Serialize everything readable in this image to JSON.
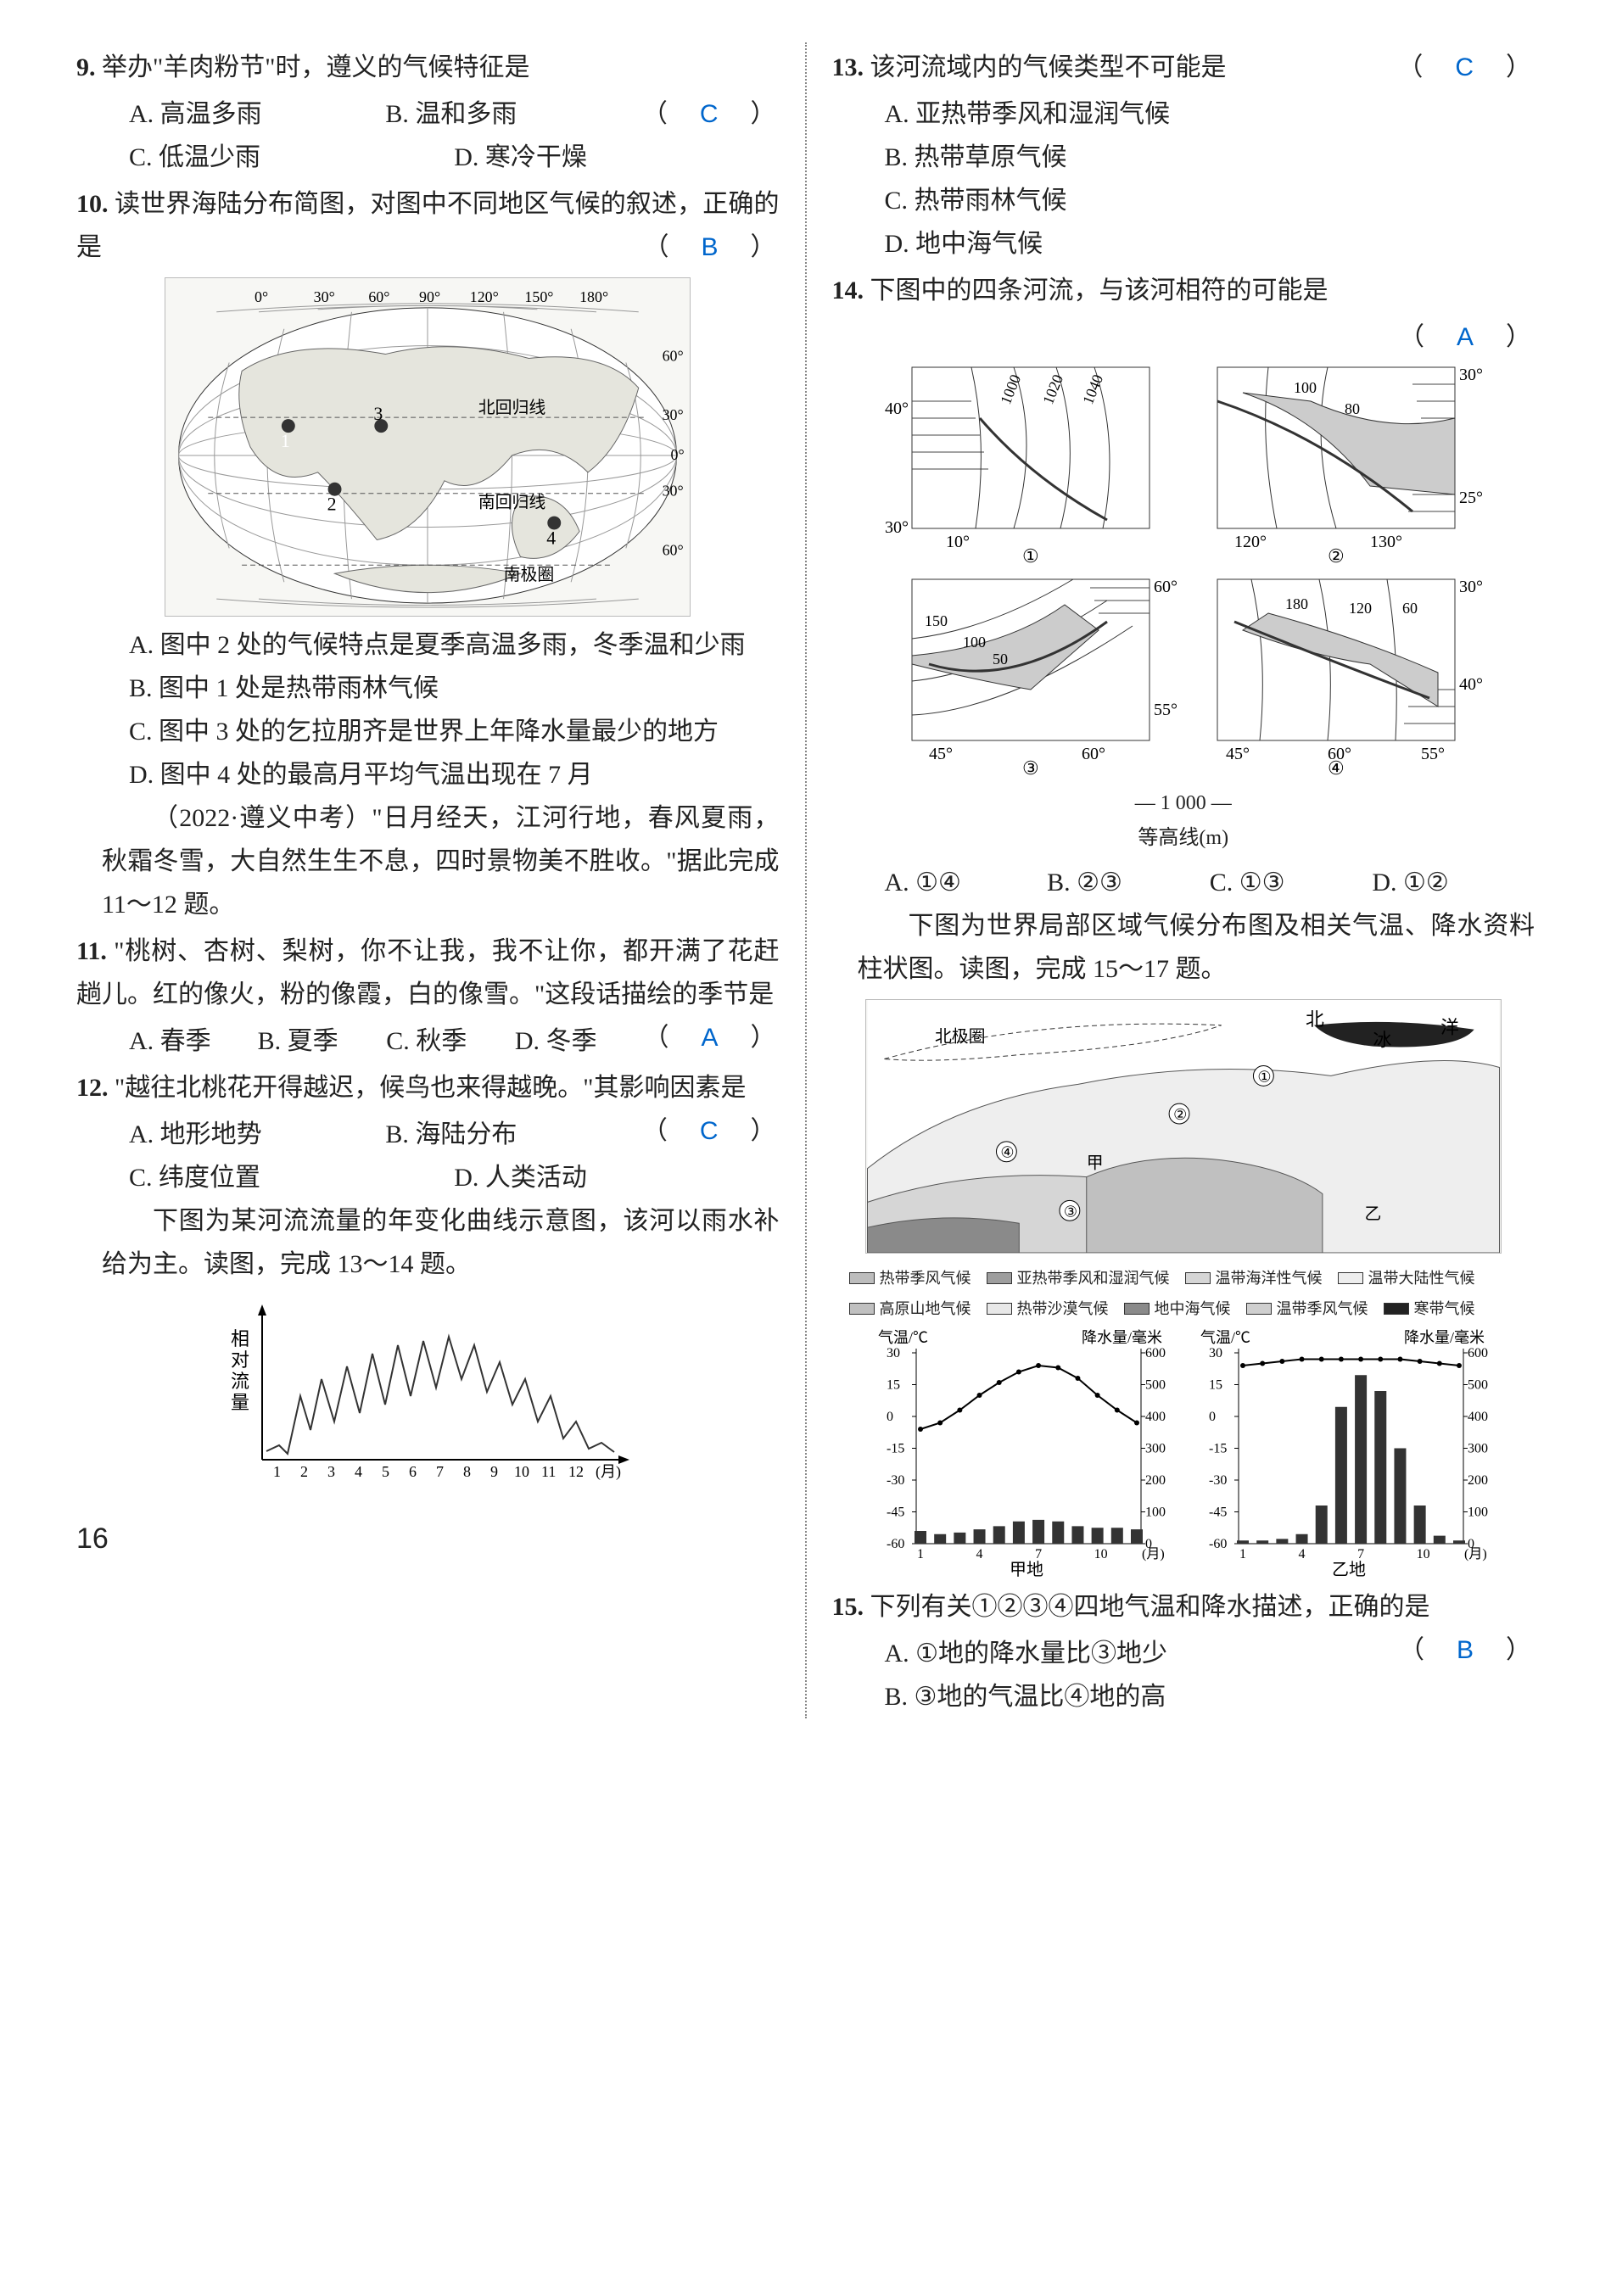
{
  "page_number": "16",
  "answer_color": "#0066cc",
  "q9": {
    "num": "9.",
    "stem": "举办\"羊肉粉节\"时，遵义的气候特征是",
    "answer": "C",
    "options": {
      "A": "A. 高温多雨",
      "B": "B. 温和多雨",
      "C": "C. 低温少雨",
      "D": "D. 寒冷干燥"
    }
  },
  "q10": {
    "num": "10.",
    "stem": "读世界海陆分布简图，对图中不同地区气候的叙述，正确的是",
    "answer": "B",
    "map": {
      "lons": [
        "0°",
        "30°",
        "60°",
        "90°",
        "120°",
        "150°",
        "180°"
      ],
      "lats_right": [
        "60°",
        "30°",
        "0°",
        "30°",
        "60°"
      ],
      "lines": [
        "北回归线",
        "南回归线",
        "南极圈"
      ],
      "markers": [
        "1",
        "2",
        "3",
        "4"
      ]
    },
    "options": {
      "A": "A. 图中 2 处的气候特点是夏季高温多雨，冬季温和少雨",
      "B": "B. 图中 1 处是热带雨林气候",
      "C": "C. 图中 3 处的乞拉朋齐是世界上年降水量最少的地方",
      "D": "D. 图中 4 处的最高月平均气温出现在 7 月"
    }
  },
  "context_a": "（2022·遵义中考）\"日月经天，江河行地，春风夏雨，秋霜冬雪，大自然生生不息，四时景物美不胜收。\"据此完成 11～12 题。",
  "q11": {
    "num": "11.",
    "stem": "\"桃树、杏树、梨树，你不让我，我不让你，都开满了花赶趟儿。红的像火，粉的像霞，白的像雪。\"这段话描绘的季节是",
    "answer": "A",
    "options": {
      "A": "A. 春季",
      "B": "B. 夏季",
      "C": "C. 秋季",
      "D": "D. 冬季"
    }
  },
  "q12": {
    "num": "12.",
    "stem": "\"越往北桃花开得越迟，候鸟也来得越晚。\"其影响因素是",
    "answer": "C",
    "options": {
      "A": "A. 地形地势",
      "B": "B. 海陆分布",
      "C": "C. 纬度位置",
      "D": "D. 人类活动"
    }
  },
  "context_b": "下图为某河流流量的年变化曲线示意图，该河以雨水补给为主。读图，完成 13～14 题。",
  "flow_chart": {
    "ylabel": "相对流量",
    "xlabel": "(月)",
    "xticks": [
      "1",
      "2",
      "3",
      "4",
      "5",
      "6",
      "7",
      "8",
      "9",
      "10",
      "11",
      "12"
    ]
  },
  "q13": {
    "num": "13.",
    "stem": "该河流域内的气候类型不可能是",
    "answer": "C",
    "options": {
      "A": "A. 亚热带季风和湿润气候",
      "B": "B. 热带草原气候",
      "C": "C. 热带雨林气候",
      "D": "D. 地中海气候"
    }
  },
  "q14": {
    "num": "14.",
    "stem": "下图中的四条河流，与该河相符的可能是",
    "answer": "A",
    "panels": {
      "p1": {
        "label": "①",
        "xr": [
          "10°"
        ],
        "yr": [
          "30°",
          "40°"
        ],
        "contours": [
          "1000",
          "1020",
          "1040"
        ]
      },
      "p2": {
        "label": "②",
        "xr": [
          "120°",
          "130°"
        ],
        "yr": [
          "25°",
          "30°"
        ],
        "contours": [
          "100",
          "80"
        ]
      },
      "p3": {
        "label": "③",
        "xr": [
          "45°",
          "60°"
        ],
        "yr": [
          "55°",
          "60°"
        ],
        "contours": [
          "150",
          "100",
          "50"
        ]
      },
      "p4": {
        "label": "④",
        "xr": [
          "45°",
          "60°",
          "55°"
        ],
        "yr": [
          "30°",
          "40°"
        ],
        "contours": [
          "180",
          "120",
          "60"
        ]
      },
      "caption1": "— 1 000 —",
      "caption2": "等高线(m)"
    },
    "options": {
      "A": "A. ①④",
      "B": "B. ②③",
      "C": "C. ①③",
      "D": "D. ①②"
    }
  },
  "context_c": "下图为世界局部区域气候分布图及相关气温、降水资料柱状图。读图，完成 15～17 题。",
  "climate_map": {
    "labels": [
      "北极圈",
      "北",
      "冰",
      "洋"
    ],
    "markers": [
      "①",
      "②",
      "③",
      "④",
      "甲",
      "乙"
    ],
    "legend": [
      {
        "name": "热带季风气候",
        "fill": "#bdbdbd"
      },
      {
        "name": "亚热带季风和湿润气候",
        "fill": "#9e9e9e"
      },
      {
        "name": "温带海洋性气候",
        "fill": "#d6d6d6"
      },
      {
        "name": "温带大陆性气候",
        "fill": "#eeeeee"
      },
      {
        "name": "高原山地气候",
        "fill": "#c0c0c0"
      },
      {
        "name": "热带沙漠气候",
        "fill": "#e8e8e8"
      },
      {
        "name": "地中海气候",
        "fill": "#8a8a8a"
      },
      {
        "name": "温带季风气候",
        "fill": "#cfcfcf"
      },
      {
        "name": "寒带气候",
        "fill": "#222222"
      }
    ]
  },
  "charts": {
    "left_label": "甲地",
    "right_label": "乙地",
    "y1_label": "气温/℃",
    "y2_label": "降水量/毫米",
    "y1_ticks": [
      "30",
      "15",
      "0",
      "-15",
      "-30",
      "-45",
      "-60"
    ],
    "y2_ticks": [
      "600",
      "500",
      "400",
      "300",
      "200",
      "100",
      "0"
    ],
    "x_ticks": [
      "1",
      "4",
      "7",
      "10",
      "(月)"
    ],
    "jia_temp": [
      -6,
      -3,
      3,
      10,
      16,
      21,
      24,
      23,
      18,
      10,
      3,
      -3
    ],
    "jia_precip": [
      40,
      30,
      35,
      45,
      55,
      70,
      75,
      70,
      55,
      50,
      50,
      45
    ],
    "yi_temp": [
      24,
      25,
      26,
      27,
      27,
      27,
      27,
      27,
      27,
      26,
      25,
      24
    ],
    "yi_precip": [
      10,
      10,
      15,
      30,
      120,
      430,
      530,
      480,
      300,
      120,
      25,
      10
    ]
  },
  "q15": {
    "num": "15.",
    "stem": "下列有关①②③④四地气温和降水描述，正确的是",
    "answer": "B",
    "options": {
      "A": "A. ①地的降水量比③地少",
      "B": "B. ③地的气温比④地的高"
    }
  }
}
